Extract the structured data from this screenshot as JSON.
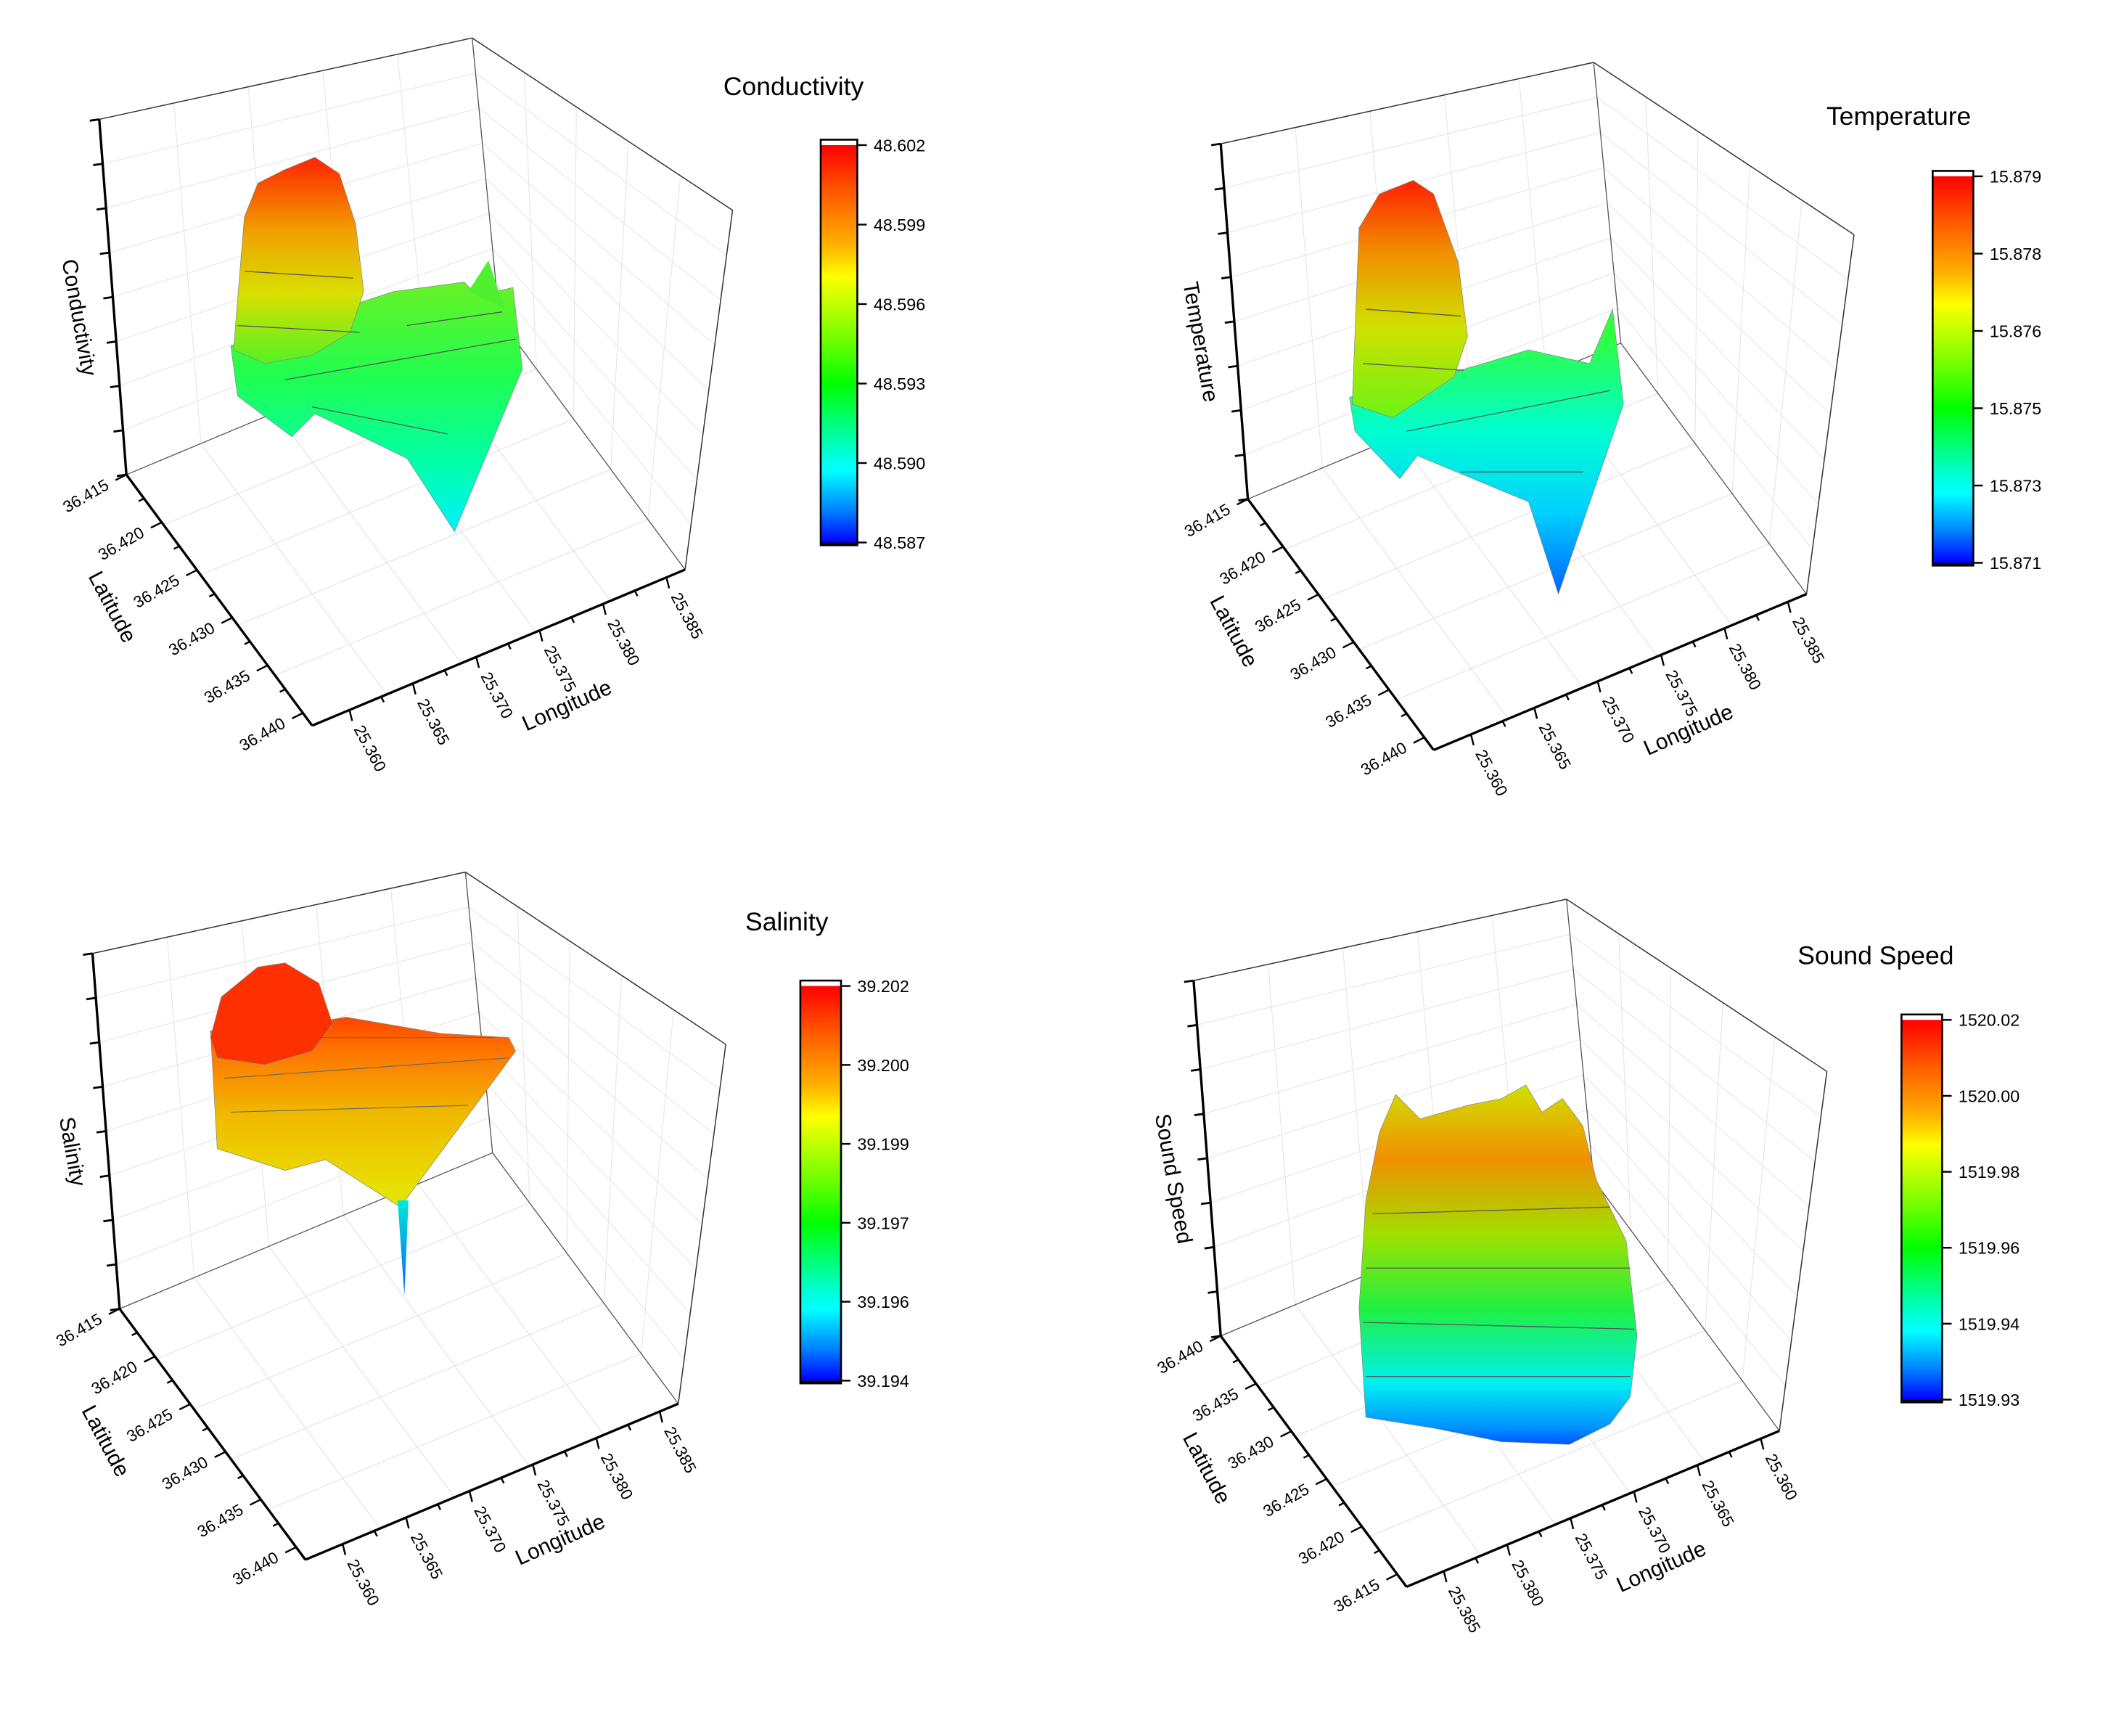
{
  "chart_data": [
    {
      "type": "heatmap",
      "title": "Conductivity",
      "zlabel": "Conductivity",
      "ylabel": "Latitude",
      "xlabel": "Longitude",
      "lat_ticks": [
        "36.415",
        "36.420",
        "36.425",
        "36.430",
        "36.435",
        "36.440"
      ],
      "lon_ticks": [
        "25.360",
        "25.365",
        "25.370",
        "25.375",
        "25.380",
        "25.385"
      ],
      "colorbar_ticks": [
        "48.602",
        "48.599",
        "48.596",
        "48.593",
        "48.590",
        "48.587"
      ],
      "zlim": [
        48.587,
        48.602
      ]
    },
    {
      "type": "heatmap",
      "title": "Temperature",
      "zlabel": "Temperature",
      "ylabel": "Latitude",
      "xlabel": "Longitude",
      "lat_ticks": [
        "36.415",
        "36.420",
        "36.425",
        "36.430",
        "36.435",
        "36.440"
      ],
      "lon_ticks": [
        "25.360",
        "25.365",
        "25.370",
        "25.375",
        "25.380",
        "25.385"
      ],
      "colorbar_ticks": [
        "15.879",
        "15.878",
        "15.876",
        "15.875",
        "15.873",
        "15.871"
      ],
      "zlim": [
        15.871,
        15.879
      ]
    },
    {
      "type": "heatmap",
      "title": "Salinity",
      "zlabel": "Salinity",
      "ylabel": "Latitude",
      "xlabel": "Longitude",
      "lat_ticks": [
        "36.415",
        "36.420",
        "36.425",
        "36.430",
        "36.435",
        "36.440"
      ],
      "lon_ticks": [
        "25.360",
        "25.365",
        "25.370",
        "25.375",
        "25.380",
        "25.385"
      ],
      "colorbar_ticks": [
        "39.202",
        "39.200",
        "39.199",
        "39.197",
        "39.196",
        "39.194"
      ],
      "zlim": [
        39.194,
        39.202
      ]
    },
    {
      "type": "heatmap",
      "title": "Sound Speed",
      "zlabel": "Sound Speed",
      "ylabel": "Latitude",
      "xlabel": "Longitude",
      "lat_ticks": [
        "36.440",
        "36.435",
        "36.430",
        "36.425",
        "36.420",
        "36.415"
      ],
      "lon_ticks": [
        "25.385",
        "25.380",
        "25.375",
        "25.370",
        "25.365",
        "25.360"
      ],
      "colorbar_ticks": [
        "1520.02",
        "1520.00",
        "1519.98",
        "1519.96",
        "1519.94",
        "1519.93"
      ],
      "zlim": [
        1519.93,
        1520.02
      ]
    }
  ]
}
